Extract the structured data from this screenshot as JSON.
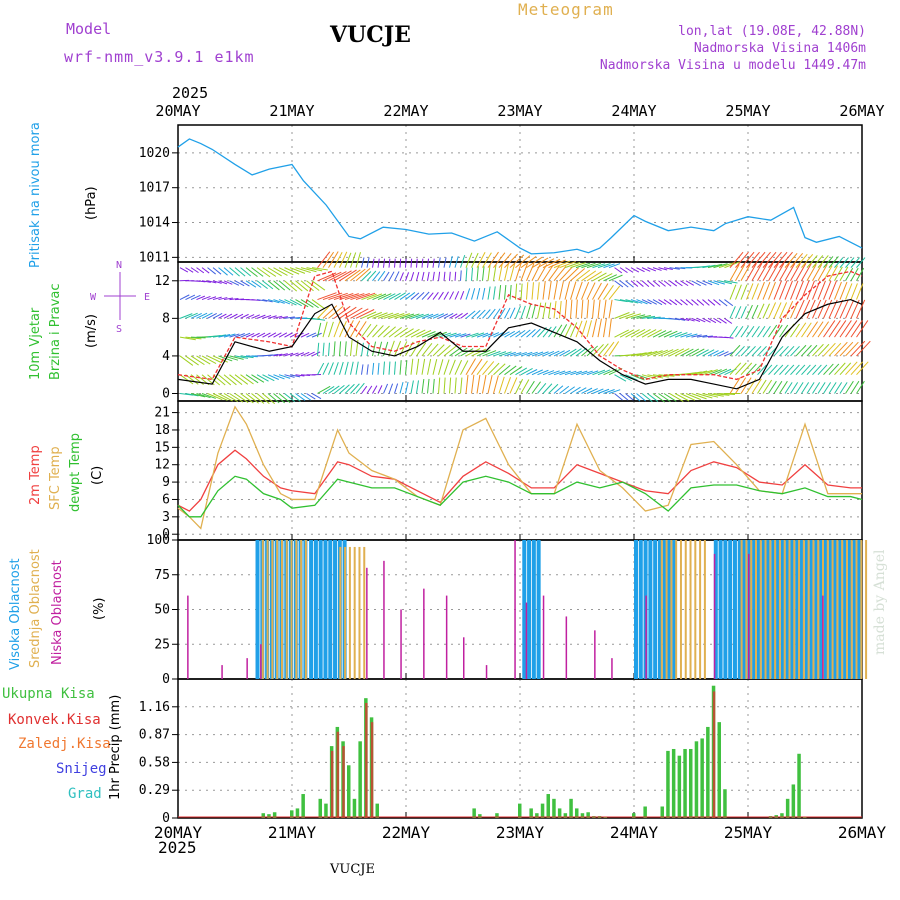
{
  "header": {
    "model_label": "Model",
    "model_version": "wrf-nmm_v3.9.1  e1km",
    "station": "VUCJE",
    "meteogram_label": "Meteogram",
    "lonlat": "lon,lat (19.08E, 42.88N)",
    "altitude": "Nadmorska Visina 1406m",
    "model_altitude": "Nadmorska Visina u modelu 1449.47m",
    "year": "2025"
  },
  "footer": {
    "station": "VUCJE",
    "year": "2025",
    "credit": "made by Angel"
  },
  "colors": {
    "pressure": "#20a0e8",
    "temp2m": "#f04040",
    "sfc": "#e0b050",
    "dewpt": "#30c030",
    "high_cloud": "#20a0e8",
    "mid_cloud": "#e0b050",
    "low_cloud": "#c020a0",
    "precip_total": "#40c040",
    "precip_conv": "#e03030",
    "precip_frozen": "#f07830",
    "snow": "#4040e0",
    "hail": "#30c0c0",
    "side_purple": "#a040d0"
  },
  "x_axis": {
    "ticks": [
      "20MAY",
      "21MAY",
      "22MAY",
      "23MAY",
      "24MAY",
      "25MAY",
      "26MAY"
    ]
  },
  "panel_labels": {
    "pressure": {
      "name": "Pritisak na nivou mora",
      "unit": "(hPa)"
    },
    "wind": {
      "name1": "10m Vjetar",
      "name2": "Brzina i Pravac",
      "unit": "(m/s)",
      "compass_n": "N",
      "compass_s": "S",
      "compass_w": "W",
      "compass_e": "E"
    },
    "temp": {
      "t2m": "2m Temp",
      "sfc": "SFC Temp",
      "dew": "dewpt Temp",
      "unit": "(C)"
    },
    "cloud": {
      "high": "Visoka Oblacnost",
      "mid": "Srednja Oblacnost",
      "low": "Niska Oblacnost",
      "unit": "(%)"
    },
    "precip": {
      "total": "Ukupna Kisa",
      "conv": "Konvek.Kisa",
      "frozen": "Zaledj.Kisa",
      "snow": "Snijeg",
      "hail": "Grad",
      "unit": "1hr Precip (mm)"
    }
  },
  "chart_data": [
    {
      "type": "line",
      "panel": "pressure",
      "x_day_range": [
        0,
        6
      ],
      "ylim": [
        1010.6,
        1022.4
      ],
      "yticks": [
        1011,
        1014,
        1017,
        1020
      ],
      "series": [
        {
          "name": "Pritisak na nivou mora",
          "x": [
            0,
            0.1,
            0.2,
            0.3,
            0.5,
            0.65,
            0.8,
            1.0,
            1.1,
            1.3,
            1.5,
            1.6,
            1.8,
            2.0,
            2.2,
            2.4,
            2.6,
            2.8,
            3.0,
            3.1,
            3.3,
            3.5,
            3.6,
            3.7,
            3.8,
            4.0,
            4.1,
            4.3,
            4.5,
            4.7,
            4.8,
            5.0,
            5.2,
            5.4,
            5.5,
            5.6,
            5.8,
            6.0
          ],
          "values": [
            1020.5,
            1021.2,
            1020.8,
            1020.3,
            1019.0,
            1018.1,
            1018.6,
            1019.0,
            1017.6,
            1015.5,
            1012.8,
            1012.6,
            1013.6,
            1013.4,
            1013.0,
            1013.1,
            1012.4,
            1013.2,
            1011.8,
            1011.3,
            1011.4,
            1011.7,
            1011.4,
            1011.8,
            1012.7,
            1014.6,
            1014.1,
            1013.3,
            1013.6,
            1013.3,
            1013.9,
            1014.5,
            1014.2,
            1015.3,
            1012.7,
            1012.3,
            1012.8,
            1011.8
          ]
        }
      ]
    },
    {
      "type": "line",
      "panel": "wind",
      "x_day_range": [
        0,
        6
      ],
      "ylim": [
        -0.8,
        14
      ],
      "yticks": [
        0,
        4,
        8,
        12
      ],
      "series": [
        {
          "name": "wind_speed",
          "x": [
            0,
            0.3,
            0.5,
            0.8,
            1.0,
            1.2,
            1.35,
            1.5,
            1.7,
            1.9,
            2.1,
            2.3,
            2.5,
            2.7,
            2.9,
            3.1,
            3.3,
            3.5,
            3.7,
            3.9,
            4.1,
            4.3,
            4.5,
            4.7,
            4.9,
            5.1,
            5.3,
            5.5,
            5.7,
            5.9,
            6.0
          ],
          "values": [
            1.5,
            1.0,
            5.5,
            4.5,
            5.0,
            8.5,
            9.5,
            6.0,
            4.5,
            4.0,
            5.0,
            6.5,
            4.5,
            4.5,
            7.0,
            7.5,
            6.5,
            5.5,
            3.5,
            2.0,
            1.0,
            1.5,
            1.5,
            1.0,
            0.5,
            1.5,
            6.0,
            8.5,
            9.5,
            10.0,
            9.5
          ]
        },
        {
          "name": "wind_gust",
          "x": [
            0,
            0.3,
            0.5,
            0.8,
            1.0,
            1.2,
            1.35,
            1.5,
            1.7,
            1.9,
            2.1,
            2.3,
            2.5,
            2.7,
            2.9,
            3.1,
            3.3,
            3.5,
            3.7,
            3.9,
            4.1,
            4.3,
            4.5,
            4.7,
            4.9,
            5.1,
            5.3,
            5.5,
            5.7,
            5.9,
            6.0
          ],
          "values": [
            2.0,
            1.5,
            6.0,
            5.5,
            5.0,
            12.5,
            13.0,
            7.5,
            5.0,
            4.5,
            5.5,
            6.0,
            5.0,
            5.0,
            10.5,
            9.5,
            9.0,
            7.0,
            4.0,
            2.5,
            1.5,
            2.0,
            2.0,
            2.0,
            1.5,
            2.5,
            8.0,
            10.5,
            12.5,
            13.0,
            12.5
          ]
        }
      ]
    },
    {
      "type": "line",
      "panel": "temperature",
      "x_day_range": [
        0,
        6
      ],
      "ylim": [
        -1,
        23
      ],
      "yticks": [
        0,
        3,
        6,
        9,
        12,
        15,
        18,
        21
      ],
      "series": [
        {
          "name": "2m Temp",
          "x": [
            0,
            0.1,
            0.2,
            0.35,
            0.5,
            0.6,
            0.75,
            0.9,
            1.0,
            1.2,
            1.4,
            1.5,
            1.7,
            1.9,
            2.1,
            2.3,
            2.5,
            2.7,
            2.9,
            3.1,
            3.3,
            3.5,
            3.7,
            3.9,
            4.1,
            4.3,
            4.5,
            4.7,
            4.9,
            5.1,
            5.3,
            5.5,
            5.7,
            5.9,
            6.0
          ],
          "values": [
            5,
            4,
            6,
            12,
            14.5,
            13,
            10,
            8,
            7.5,
            7,
            12.5,
            12,
            10,
            9.5,
            7.5,
            5.5,
            10,
            12.5,
            10.5,
            8,
            8,
            12,
            10.5,
            9,
            7.5,
            7,
            11,
            12.5,
            11.5,
            9,
            8.5,
            12,
            8.5,
            8,
            8
          ]
        },
        {
          "name": "SFC Temp",
          "x": [
            0,
            0.1,
            0.2,
            0.35,
            0.5,
            0.6,
            0.75,
            0.9,
            1.0,
            1.2,
            1.4,
            1.5,
            1.7,
            1.9,
            2.1,
            2.3,
            2.5,
            2.7,
            2.9,
            3.1,
            3.3,
            3.5,
            3.7,
            3.9,
            4.1,
            4.3,
            4.5,
            4.7,
            4.9,
            5.1,
            5.3,
            5.5,
            5.7,
            5.9,
            6.0
          ],
          "values": [
            4.5,
            3,
            1,
            14,
            22,
            19,
            12,
            7,
            6,
            6,
            18,
            14,
            11,
            9.5,
            6.5,
            5,
            18,
            20,
            12,
            7,
            7,
            19,
            11,
            8,
            4,
            5,
            15.5,
            16,
            12,
            7.5,
            7,
            19,
            7,
            7,
            7
          ]
        },
        {
          "name": "dewpt Temp",
          "x": [
            0,
            0.1,
            0.2,
            0.35,
            0.5,
            0.6,
            0.75,
            0.9,
            1.0,
            1.2,
            1.4,
            1.5,
            1.7,
            1.9,
            2.1,
            2.3,
            2.5,
            2.7,
            2.9,
            3.1,
            3.3,
            3.5,
            3.7,
            3.9,
            4.1,
            4.3,
            4.5,
            4.7,
            4.9,
            5.1,
            5.3,
            5.5,
            5.7,
            5.9,
            6.0
          ],
          "values": [
            5,
            3,
            3,
            7.5,
            10,
            9.5,
            7,
            6,
            4.5,
            5,
            9.5,
            9,
            8,
            8,
            6.5,
            5,
            9,
            10,
            9,
            7,
            7,
            9,
            8,
            9,
            7,
            4,
            8,
            8.5,
            8.5,
            7.5,
            7,
            8,
            6.5,
            6.5,
            6
          ]
        }
      ]
    },
    {
      "type": "bar",
      "panel": "cloud",
      "x_day_range": [
        0,
        6
      ],
      "ylim": [
        0,
        100
      ],
      "yticks": [
        0,
        25,
        50,
        75,
        100
      ],
      "series": [
        {
          "name": "Visoka Oblacnost",
          "segments": [
            [
              0.68,
              1.12,
              100
            ],
            [
              1.15,
              1.45,
              100
            ],
            [
              3.02,
              3.18,
              100
            ],
            [
              4.0,
              4.35,
              100
            ],
            [
              4.7,
              6.0,
              100
            ]
          ]
        },
        {
          "name": "Srednja Oblacnost",
          "segments": [
            [
              0.7,
              1.1,
              100
            ],
            [
              1.38,
              1.62,
              95
            ],
            [
              4.2,
              4.6,
              100
            ],
            [
              4.9,
              6.0,
              100
            ]
          ]
        },
        {
          "name": "Niska Oblacnost",
          "spikes": [
            [
              0.08,
              60
            ],
            [
              0.38,
              10
            ],
            [
              0.6,
              15
            ],
            [
              0.72,
              25
            ],
            [
              1.65,
              80
            ],
            [
              1.8,
              85
            ],
            [
              1.95,
              50
            ],
            [
              2.15,
              65
            ],
            [
              2.35,
              60
            ],
            [
              2.5,
              30
            ],
            [
              2.7,
              10
            ],
            [
              2.95,
              100
            ],
            [
              3.05,
              55
            ],
            [
              3.2,
              60
            ],
            [
              3.4,
              45
            ],
            [
              3.65,
              35
            ],
            [
              3.8,
              15
            ],
            [
              4.1,
              60
            ],
            [
              4.7,
              90
            ],
            [
              5.0,
              90
            ],
            [
              5.65,
              60
            ]
          ]
        }
      ]
    },
    {
      "type": "bar",
      "panel": "precipitation",
      "x_day_range": [
        0,
        6
      ],
      "ylim": [
        0,
        1.45
      ],
      "yticks": [
        0,
        0.29,
        0.58,
        0.87,
        1.16
      ],
      "series": [
        {
          "name": "Ukupna Kisa",
          "x": [
            0.75,
            0.8,
            0.85,
            1.0,
            1.05,
            1.1,
            1.25,
            1.3,
            1.35,
            1.4,
            1.45,
            1.5,
            1.55,
            1.6,
            1.65,
            1.7,
            1.75,
            2.6,
            2.65,
            2.8,
            3.0,
            3.1,
            3.15,
            3.2,
            3.25,
            3.3,
            3.35,
            3.4,
            3.45,
            3.5,
            3.55,
            3.6,
            3.65,
            3.7,
            3.75,
            4.0,
            4.1,
            4.25,
            4.3,
            4.35,
            4.4,
            4.45,
            4.5,
            4.55,
            4.6,
            4.65,
            4.7,
            4.75,
            4.8,
            5.2,
            5.25,
            5.3,
            5.35,
            5.4,
            5.45,
            5.5
          ],
          "values": [
            0.05,
            0.04,
            0.06,
            0.08,
            0.1,
            0.25,
            0.2,
            0.15,
            0.75,
            0.95,
            0.8,
            0.55,
            0.2,
            0.8,
            1.25,
            1.05,
            0.15,
            0.1,
            0.04,
            0.05,
            0.15,
            0.1,
            0.05,
            0.15,
            0.25,
            0.2,
            0.1,
            0.05,
            0.2,
            0.1,
            0.05,
            0.06,
            0.02,
            0.02,
            0.01,
            0.05,
            0.12,
            0.12,
            0.7,
            0.72,
            0.65,
            0.72,
            0.72,
            0.8,
            0.83,
            0.95,
            1.38,
            1.0,
            0.3,
            0.02,
            0.03,
            0.05,
            0.2,
            0.35,
            0.67,
            0.01
          ]
        },
        {
          "name": "Konvek.Kisa",
          "x": [
            1.35,
            1.4,
            1.45,
            1.65,
            1.7,
            4.7
          ],
          "values": [
            0.7,
            0.9,
            0.75,
            1.2,
            1.0,
            1.32
          ]
        }
      ]
    }
  ]
}
